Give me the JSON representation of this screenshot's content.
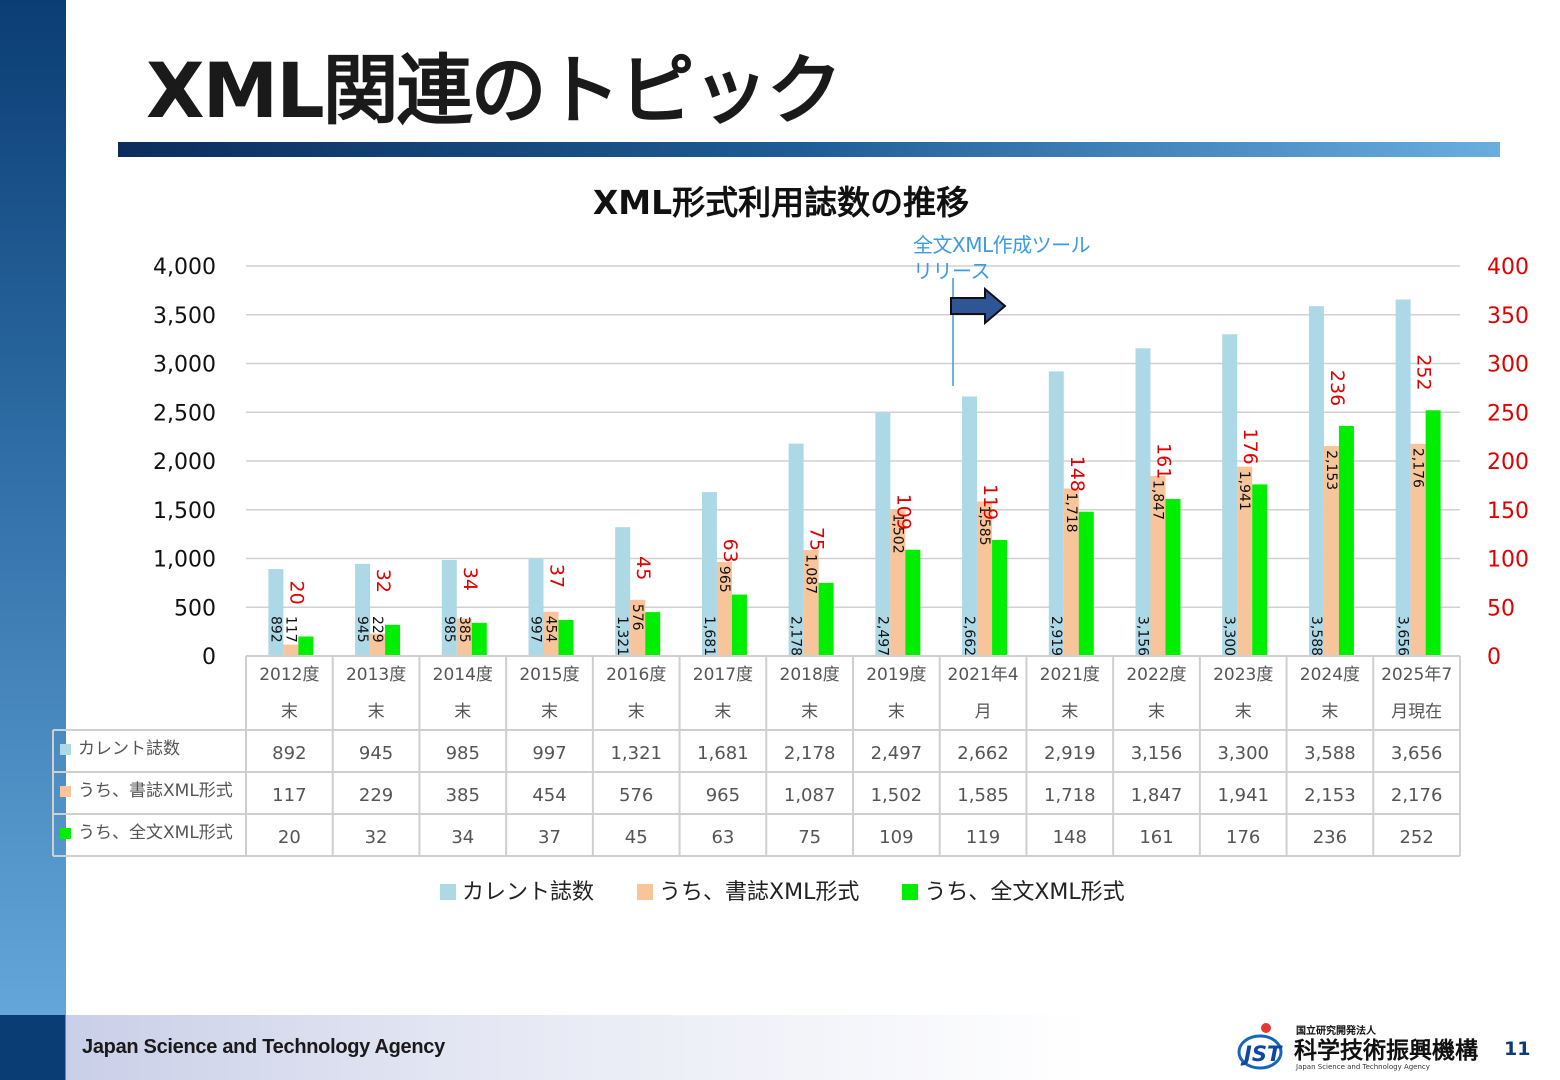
{
  "slide": {
    "title": "XML関連のトピック",
    "footer_org": "Japan Science and Technology Agency",
    "page_number": "11",
    "logo": {
      "mark": "JST",
      "line1": "国立研究開発法人",
      "line2": "科学技術振興機構",
      "line3": "Japan Science and Technology Agency"
    }
  },
  "annotation": {
    "line1": "全文XML作成ツール",
    "line2": "リリース"
  },
  "colors": {
    "current": "#add8e6",
    "biblio": "#f8c49a",
    "fulltext": "#00ee00",
    "right_axis": "#e00000",
    "annotation": "#3c9be0"
  },
  "chart_data": {
    "type": "bar",
    "title": "XML形式利用誌数の推移",
    "categories": [
      [
        "2012度",
        "末"
      ],
      [
        "2013度",
        "末"
      ],
      [
        "2014度",
        "末"
      ],
      [
        "2015度",
        "末"
      ],
      [
        "2016度",
        "末"
      ],
      [
        "2017度",
        "末"
      ],
      [
        "2018度",
        "末"
      ],
      [
        "2019度",
        "末"
      ],
      [
        "2021年4",
        "月"
      ],
      [
        "2021度",
        "末"
      ],
      [
        "2022度",
        "末"
      ],
      [
        "2023度",
        "末"
      ],
      [
        "2024度",
        "末"
      ],
      [
        "2025年7",
        "月現在"
      ]
    ],
    "series": [
      {
        "name": "カレント誌数",
        "axis": "left",
        "values": [
          892,
          945,
          985,
          997,
          1321,
          1681,
          2178,
          2497,
          2662,
          2919,
          3156,
          3300,
          3588,
          3656
        ],
        "labels": [
          "892",
          "945",
          "985",
          "997",
          "1,321",
          "1,681",
          "2,178",
          "2,497",
          "2,662",
          "2,919",
          "3,156",
          "3,300",
          "3,588",
          "3,656"
        ]
      },
      {
        "name": "うち、書誌XML形式",
        "axis": "left",
        "values": [
          117,
          229,
          385,
          454,
          576,
          965,
          1087,
          1502,
          1585,
          1718,
          1847,
          1941,
          2153,
          2176
        ],
        "labels": [
          "117",
          "229",
          "385",
          "454",
          "576",
          "965",
          "1,087",
          "1,502",
          "1,585",
          "1,718",
          "1,847",
          "1,941",
          "2,153",
          "2,176"
        ]
      },
      {
        "name": "うち、全文XML形式",
        "axis": "right",
        "values": [
          20,
          32,
          34,
          37,
          45,
          63,
          75,
          109,
          119,
          148,
          161,
          176,
          236,
          252
        ],
        "labels": [
          "20",
          "32",
          "34",
          "37",
          "45",
          "63",
          "75",
          "109",
          "119",
          "148",
          "161",
          "176",
          "236",
          "252"
        ]
      }
    ],
    "left_axis": {
      "ylim": [
        0,
        4000
      ],
      "ticks": [
        "0",
        "500",
        "1,000",
        "1,500",
        "2,000",
        "2,500",
        "3,000",
        "3,500",
        "4,000"
      ],
      "tick_values": [
        0,
        500,
        1000,
        1500,
        2000,
        2500,
        3000,
        3500,
        4000
      ]
    },
    "right_axis": {
      "ylim": [
        0,
        400
      ],
      "ticks": [
        "0",
        "50",
        "100",
        "150",
        "200",
        "250",
        "300",
        "350",
        "400"
      ],
      "tick_values": [
        0,
        50,
        100,
        150,
        200,
        250,
        300,
        350,
        400
      ]
    },
    "grid": true,
    "legend_position": "bottom",
    "data_table": true
  }
}
